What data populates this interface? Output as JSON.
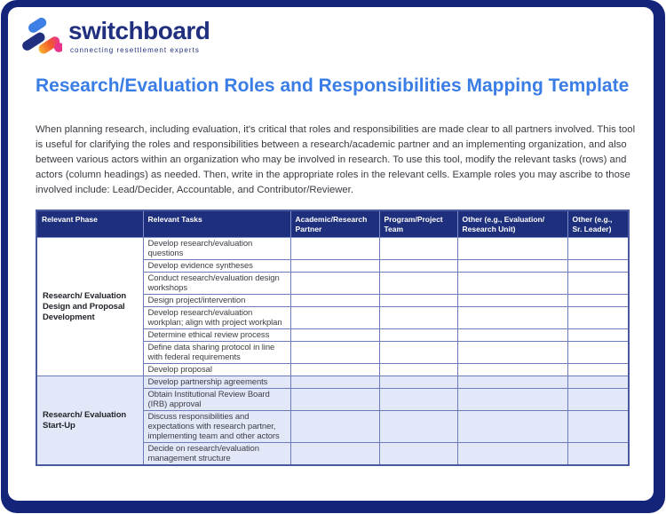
{
  "brand": {
    "logo_text": "switchboard",
    "tagline": "connecting resettlement experts"
  },
  "document": {
    "title": "Research/Evaluation Roles and Responsibilities Mapping Template",
    "intro": "When planning research, including evaluation, it's critical that roles and responsibilities are made clear to all partners involved. This tool is useful for clarifying the roles and responsibilities between a research/academic partner and an implementing organization, and also between various actors within an organization who may be involved in research. To use this tool, modify the relevant tasks (rows) and actors (column headings) as needed. Then, write in the appropriate roles in the relevant cells. Example roles you may ascribe to those involved include: Lead/Decider, Accountable, and Contributor/Reviewer."
  },
  "table": {
    "columns": [
      "Relevant Phase",
      "Relevant Tasks",
      "Academic/Research\nPartner",
      "Program/Project\nTeam",
      "Other (e.g., Evaluation/\nResearch Unit)",
      "Other (e.g.,\nSr. Leader)"
    ],
    "sections": [
      {
        "phase": "Research/ Evaluation Design and Proposal Development",
        "tasks": [
          "Develop research/evaluation questions",
          "Develop evidence syntheses",
          "Conduct research/evaluation design workshops",
          "Design project/intervention",
          "Develop research/evaluation workplan; align with project workplan",
          "Determine ethical review process",
          "Define data sharing protocol in line with federal requirements",
          "Develop proposal"
        ]
      },
      {
        "phase": "Research/ Evaluation Start-Up",
        "tasks": [
          "Develop partnership agreements",
          "Obtain Institutional Review Board (IRB) approval",
          "Discuss responsibilities and expectations with research partner, implementing team and other actors",
          "Decide on research/evaluation management structure"
        ]
      }
    ],
    "empty_cell_value": ""
  },
  "colors": {
    "frame_navy": "#15247B",
    "header_navy": "#1E2F7D",
    "title_blue": "#3A7DE6",
    "band_highlight": "#E3E8F8",
    "grid_line": "#6C7BB9",
    "logo_navy": "#20307E",
    "logo_blue": "#3D7FE4",
    "logo_orange": "#F9B233",
    "logo_red_orange": "#F15A29",
    "logo_pink": "#E9348C"
  }
}
